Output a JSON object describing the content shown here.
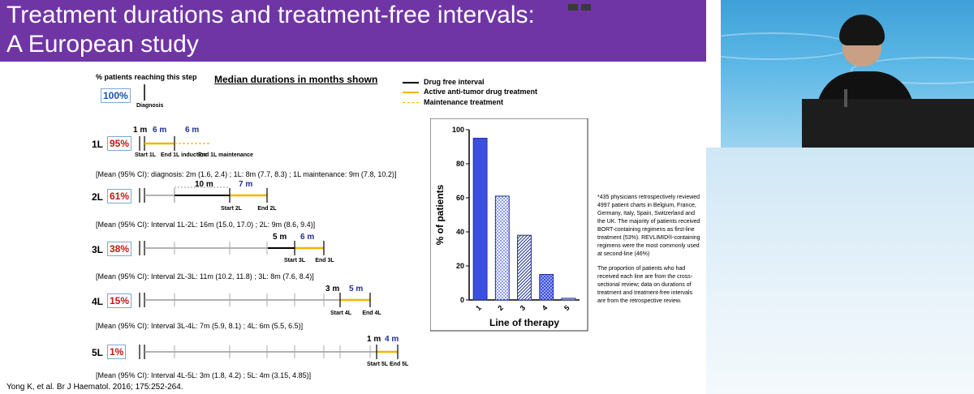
{
  "slide": {
    "title_line1": "Treatment durations and treatment-free intervals:",
    "title_line2": "A European study",
    "pct_header": "% patients reaching this step",
    "median_label": "Median durations in months shown",
    "legend": [
      {
        "label": "Drug free interval",
        "color": "#000000",
        "style": "solid"
      },
      {
        "label": "Active anti-tumor drug treatment",
        "color": "#f5b400",
        "style": "solid"
      },
      {
        "label": "Maintenance treatment",
        "color": "#f5b400",
        "style": "dashed"
      }
    ],
    "diagnosis": {
      "pct": "100%",
      "label": "Diagnosis"
    },
    "rows": [
      {
        "line": "1L",
        "pct": "95%",
        "durations": [
          "1 m",
          "6 m",
          "6 m"
        ],
        "ticks": [
          "Start 1L",
          "End 1L induction",
          "End 1L maintenance"
        ],
        "mean": "[Mean (95% CI): diagnosis: 2m (1.6, 2.4) ;  1L: 8m (7.7, 8.3) ; 1L maintenance: 9m (7.8, 10.2)]"
      },
      {
        "line": "2L",
        "pct": "61%",
        "durations": [
          "10 m",
          "7 m"
        ],
        "ticks": [
          "Start 2L",
          "End 2L"
        ],
        "mean": "[Mean (95% CI): Interval 1L-2L: 16m (15.0, 17.0) ; 2L: 9m (8.6, 9.4)]"
      },
      {
        "line": "3L",
        "pct": "38%",
        "durations": [
          "5 m",
          "6 m"
        ],
        "ticks": [
          "Start 3L",
          "End 3L"
        ],
        "mean": "[Mean (95% CI): Interval 2L-3L: 11m (10.2, 11.8) ; 3L: 8m (7.6, 8.4)]"
      },
      {
        "line": "4L",
        "pct": "15%",
        "durations": [
          "3 m",
          "5 m"
        ],
        "ticks": [
          "Start 4L",
          "End 4L"
        ],
        "mean": "[Mean (95% CI): Interval 3L-4L: 7m (5.9, 8.1) ; 4L: 6m (5.5, 6.5)]"
      },
      {
        "line": "5L",
        "pct": "1%",
        "durations": [
          "1 m",
          "4 m"
        ],
        "ticks": [
          "Start 5L",
          "End 5L"
        ],
        "mean": "[Mean (95% CI): Interval 4L-5L: 3m (1.8, 4.2) ; 5L: 4m (3.15, 4.85)]"
      }
    ],
    "footnote_p1": "*435 physicians retrospectively reviewed 4997 patient charts in Belgium, France, Germany, Italy, Spain, Switzerland and the UK. The majority of patients received BORT-containing regimens as first-line treatment (53%). REVLIMID®-containing regimens were the most commonly used at second-line (46%)",
    "footnote_p2": "The proportion of patients who had received each line are from the cross-sectional review; data on durations of treatment and treatment-free intervals are from the retrospective review.",
    "citation": "Yong K, et al. Br J Haematol. 2016; 175:252-264."
  },
  "colors": {
    "title_bar": "#6f35a5",
    "active": "#f5b400",
    "drug_free": "#000000",
    "bar1": "#3b4fe0",
    "pct_blue": "#1a53a6",
    "pct_red": "#c01818"
  },
  "chart_data": {
    "type": "bar",
    "categories": [
      "1",
      "2",
      "3",
      "4",
      "5"
    ],
    "values": [
      95,
      61,
      38,
      15,
      1
    ],
    "title": "",
    "xlabel": "Line of therapy",
    "ylabel": "% of patients",
    "ylim": [
      0,
      100
    ],
    "yticks": [
      "0",
      "20",
      "40",
      "60",
      "80",
      "100"
    ],
    "fills": [
      "solid",
      "dots",
      "diagonal-hatch",
      "checker",
      "solid-light"
    ],
    "grid": false
  }
}
